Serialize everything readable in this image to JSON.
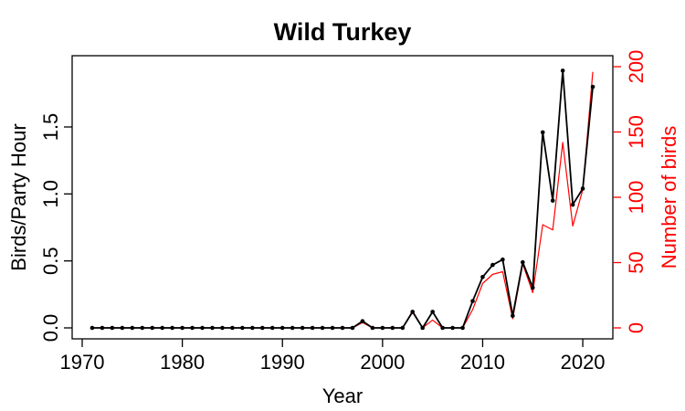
{
  "chart_data": {
    "type": "line",
    "title": "Wild Turkey",
    "xlabel": "Year",
    "ylabel": "Birds/Party Hour",
    "ylabel_right": "Number of birds",
    "xlim": [
      1970,
      2022
    ],
    "ylim": [
      0,
      1.95
    ],
    "ylim_right": [
      0,
      200
    ],
    "x_ticks": [
      1970,
      1980,
      1990,
      2000,
      2010,
      2020
    ],
    "y_ticks": [
      0.0,
      0.5,
      1.0,
      1.5
    ],
    "y_tick_labels": [
      "0.0",
      "0.5",
      "1.0",
      "1.5"
    ],
    "y_right_ticks": [
      0,
      50,
      100,
      150,
      200
    ],
    "grid": false,
    "colors": {
      "left_axis": "#000000",
      "right_axis": "#ff0000"
    },
    "x": [
      1971,
      1972,
      1973,
      1974,
      1975,
      1976,
      1977,
      1978,
      1979,
      1980,
      1981,
      1982,
      1983,
      1984,
      1985,
      1986,
      1987,
      1988,
      1989,
      1990,
      1991,
      1992,
      1993,
      1994,
      1995,
      1996,
      1997,
      1998,
      1999,
      2000,
      2001,
      2002,
      2003,
      2004,
      2005,
      2006,
      2007,
      2008,
      2009,
      2010,
      2011,
      2012,
      2013,
      2014,
      2015,
      2016,
      2017,
      2018,
      2019,
      2020,
      2021
    ],
    "series": [
      {
        "axis": "left",
        "color": "#000000",
        "markers": true,
        "values": [
          0,
          0,
          0,
          0,
          0,
          0,
          0,
          0,
          0,
          0,
          0,
          0,
          0,
          0,
          0,
          0,
          0,
          0,
          0,
          0,
          0,
          0,
          0,
          0,
          0,
          0,
          0,
          0.05,
          0,
          0,
          0,
          0,
          0.12,
          0,
          0.12,
          0,
          0,
          0,
          0.2,
          0.38,
          0.47,
          0.51,
          0.09,
          0.49,
          0.3,
          1.46,
          0.95,
          1.92,
          0.92,
          1.04,
          1.8
        ]
      },
      {
        "axis": "right",
        "color": "#ff0000",
        "markers": false,
        "values": [
          0,
          0,
          0,
          0,
          0,
          0,
          0,
          0,
          0,
          0,
          0,
          0,
          0,
          0,
          0,
          0,
          0,
          0,
          0,
          0,
          0,
          0,
          0,
          0,
          0,
          0,
          0,
          4,
          0,
          0,
          0,
          0,
          13,
          0,
          6,
          0,
          0,
          0,
          14,
          34,
          41,
          43,
          7,
          49,
          27,
          79,
          75,
          142,
          78,
          106,
          196
        ]
      }
    ]
  }
}
